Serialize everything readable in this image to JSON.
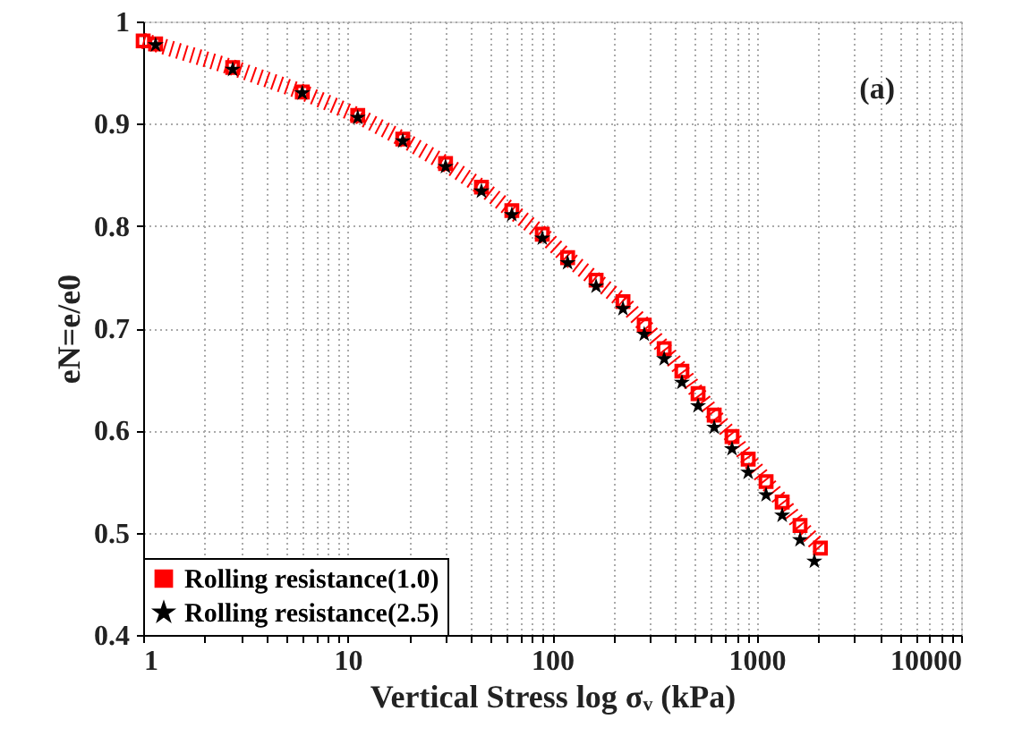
{
  "chart_data": {
    "type": "line",
    "xlabel": "Vertical Stress log σᵥ (kPa)",
    "ylabel": "eN=e/e0",
    "annotations": [
      "(a)"
    ],
    "log": "x",
    "grid": true,
    "legend": "bottom left",
    "xlim": [
      1,
      10000
    ],
    "ylim": [
      0.4,
      1
    ],
    "xticks": [
      1,
      {
        "value": 2,
        "label": null
      },
      {
        "value": 3,
        "label": null
      },
      {
        "value": 4,
        "label": null
      },
      {
        "value": 5,
        "label": null
      },
      {
        "value": 6,
        "label": null
      },
      {
        "value": 7,
        "label": null
      },
      {
        "value": 8,
        "label": null
      },
      {
        "value": 9,
        "label": null
      },
      10,
      {
        "value": 20,
        "label": null
      },
      {
        "value": 30,
        "label": null
      },
      {
        "value": 40,
        "label": null
      },
      {
        "value": 50,
        "label": null
      },
      {
        "value": 60,
        "label": null
      },
      {
        "value": 70,
        "label": null
      },
      {
        "value": 80,
        "label": null
      },
      {
        "value": 90,
        "label": null
      },
      100,
      {
        "value": 200,
        "label": null
      },
      {
        "value": 300,
        "label": null
      },
      {
        "value": 400,
        "label": null
      },
      {
        "value": 500,
        "label": null
      },
      {
        "value": 600,
        "label": null
      },
      {
        "value": 700,
        "label": null
      },
      {
        "value": 800,
        "label": null
      },
      {
        "value": 900,
        "label": null
      },
      1000,
      {
        "value": 2000,
        "label": null
      },
      {
        "value": 3000,
        "label": null
      },
      {
        "value": 4000,
        "label": null
      },
      {
        "value": 5000,
        "label": null
      },
      {
        "value": 6000,
        "label": null
      },
      {
        "value": 7000,
        "label": null
      },
      {
        "value": 8000,
        "label": null
      },
      {
        "value": 9000,
        "label": null
      },
      10000
    ],
    "yticks": [
      0.4,
      0.5,
      0.6,
      0.7,
      0.8,
      0.9,
      1
    ],
    "series": [
      {
        "name": "Rolling resistance(1.0)",
        "color": "#ff0000",
        "marker": "square",
        "line_style": "dotted",
        "x": [
          1,
          1.15,
          2.74,
          6,
          11.2,
          18.6,
          30.1,
          45.1,
          63.5,
          89.5,
          119,
          164,
          222,
          282,
          353,
          431,
          517,
          620,
          758,
          909,
          1112,
          1333,
          1630,
          2050
        ],
        "values": [
          0.981,
          0.978,
          0.955,
          0.931,
          0.908,
          0.885,
          0.861,
          0.838,
          0.815,
          0.792,
          0.769,
          0.747,
          0.726,
          0.703,
          0.68,
          0.658,
          0.636,
          0.615,
          0.594,
          0.572,
          0.55,
          0.53,
          0.507,
          0.485
        ]
      },
      {
        "name": "Rolling resistance(2.5)",
        "color": "#000000",
        "type": "scatter",
        "marker": "star",
        "x": [
          1.15,
          2.74,
          6,
          11.2,
          18.6,
          30.1,
          45.1,
          63.5,
          89.5,
          119,
          164,
          222,
          282,
          353,
          431,
          517,
          620,
          758,
          909,
          1112,
          1333,
          1630,
          1915
        ],
        "values": [
          0.977,
          0.953,
          0.93,
          0.906,
          0.883,
          0.858,
          0.834,
          0.811,
          0.788,
          0.764,
          0.741,
          0.719,
          0.694,
          0.67,
          0.647,
          0.624,
          0.603,
          0.582,
          0.559,
          0.537,
          0.517,
          0.493,
          0.472
        ]
      }
    ]
  }
}
